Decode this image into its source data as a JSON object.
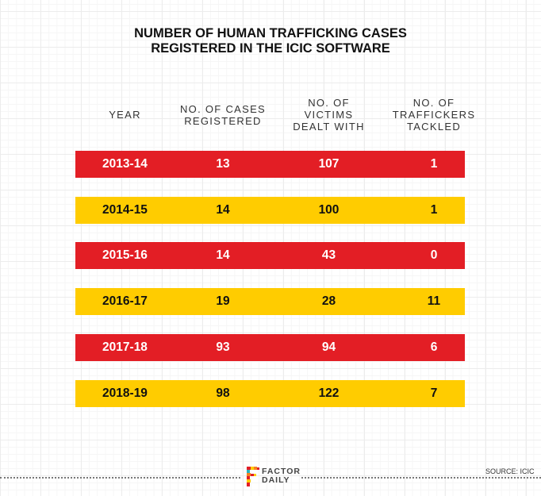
{
  "chart_data": {
    "type": "table",
    "title": "NUMBER OF HUMAN TRAFFICKING CASES REGISTERED IN THE ICIC SOFTWARE",
    "title_lines": [
      "NUMBER OF HUMAN TRAFFICKING CASES",
      "REGISTERED IN THE ICIC SOFTWARE"
    ],
    "columns": [
      {
        "lines": [
          "YEAR"
        ]
      },
      {
        "lines": [
          "NO. OF CASES",
          "REGISTERED"
        ]
      },
      {
        "lines": [
          "NO. OF",
          "VICTIMS",
          "DEALT WITH"
        ]
      },
      {
        "lines": [
          "NO. OF",
          "TRAFFICKERS",
          "TACKLED"
        ]
      }
    ],
    "rows": [
      {
        "year": "2013-14",
        "cases": 13,
        "victims": 107,
        "traffickers": 1,
        "color": "red"
      },
      {
        "year": "2014-15",
        "cases": 14,
        "victims": 100,
        "traffickers": 1,
        "color": "yellow"
      },
      {
        "year": "2015-16",
        "cases": 14,
        "victims": 43,
        "traffickers": 0,
        "color": "red"
      },
      {
        "year": "2016-17",
        "cases": 19,
        "victims": 28,
        "traffickers": 11,
        "color": "yellow"
      },
      {
        "year": "2017-18",
        "cases": 93,
        "victims": 94,
        "traffickers": 6,
        "color": "red"
      },
      {
        "year": "2018-19",
        "cases": 98,
        "victims": 122,
        "traffickers": 7,
        "color": "yellow"
      }
    ]
  },
  "colors": {
    "red": "#e31e25",
    "yellow": "#ffcc00",
    "red_text": "#ffffff",
    "yellow_text": "#111111"
  },
  "footer": {
    "logo_lines": [
      "FACTOR",
      "DAILY"
    ],
    "source": "SOURCE: ICIC"
  }
}
